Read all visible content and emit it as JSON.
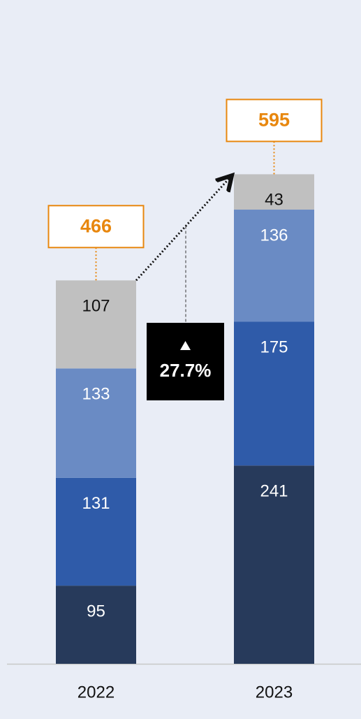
{
  "chart_data": {
    "type": "stacked_bar",
    "categories": [
      "2022",
      "2023"
    ],
    "series": [
      {
        "color": "#273a5b",
        "values": [
          95,
          241
        ]
      },
      {
        "color": "#2f5ba9",
        "values": [
          131,
          175
        ]
      },
      {
        "color": "#6a8bc4",
        "values": [
          133,
          136
        ]
      },
      {
        "color": "#c0c0c0",
        "values": [
          107,
          43
        ]
      }
    ],
    "totals": [
      466,
      595
    ],
    "annotation": "27.7%",
    "ylim": [
      0,
      800
    ]
  }
}
